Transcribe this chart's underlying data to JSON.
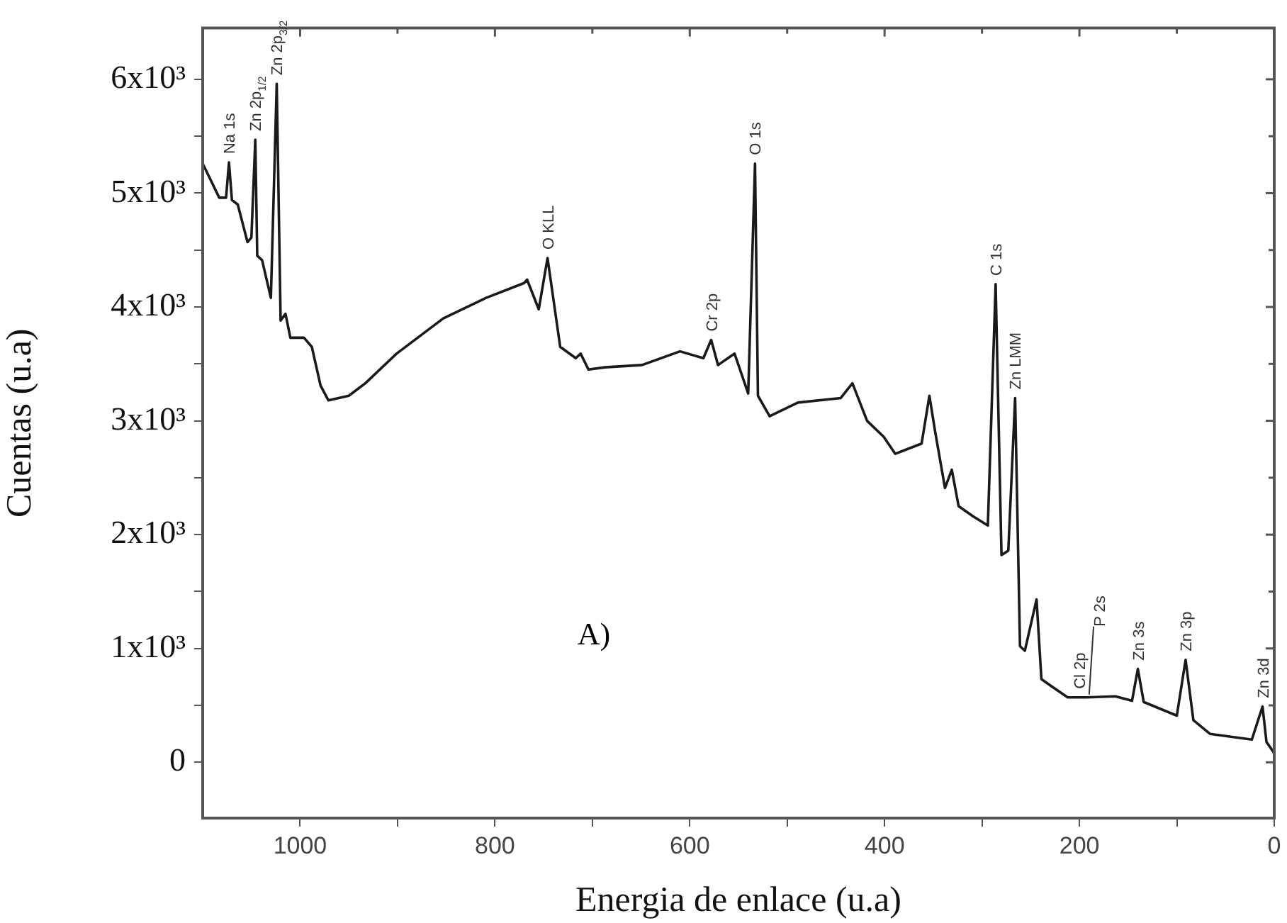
{
  "chart_data": {
    "type": "line",
    "xlabel": "Energia de enlace (u.a)",
    "ylabel": "Cuentas (u.a)",
    "xlim": [
      1100,
      0
    ],
    "ylim": [
      -490,
      6450
    ],
    "xticks": [
      1000,
      {
        "value": 900,
        "label": null
      },
      800,
      {
        "value": 700,
        "label": null
      },
      600,
      {
        "value": 500,
        "label": null
      },
      400,
      {
        "value": 300,
        "label": null
      },
      200,
      {
        "value": 100,
        "label": null
      },
      0
    ],
    "yticks": [
      0,
      {
        "value": 500,
        "label": null
      },
      {
        "value": 1000,
        "label": "1x10³"
      },
      {
        "value": 1500,
        "label": null
      },
      {
        "value": 2000,
        "label": "2x10³"
      },
      {
        "value": 2500,
        "label": null
      },
      {
        "value": 3000,
        "label": "3x10³"
      },
      {
        "value": 3500,
        "label": null
      },
      {
        "value": 4000,
        "label": "4x10³"
      },
      {
        "value": 4500,
        "label": null
      },
      {
        "value": 5000,
        "label": "5x10³"
      },
      {
        "value": 5500,
        "label": null
      },
      {
        "value": 6000,
        "label": "6x10³"
      }
    ],
    "grid": false,
    "legend": false,
    "marker": "none",
    "line_style": "solid",
    "series": [
      {
        "color": "#1a1a1a",
        "x": [
          1100,
          1083,
          1076,
          1073,
          1070,
          1064,
          1054,
          1050,
          1046,
          1044,
          1039,
          1030,
          1024,
          1020,
          1015,
          1010,
          996,
          988,
          979,
          971,
          950,
          933,
          901,
          853,
          809,
          770,
          767,
          755,
          746,
          733,
          717,
          712,
          704,
          687,
          649,
          610,
          586,
          578,
          571,
          554,
          540,
          533,
          530,
          518,
          489,
          445,
          433,
          418,
          401,
          389,
          362,
          354,
          348,
          338,
          331,
          324,
          309,
          294,
          286,
          280,
          273,
          266,
          261,
          256,
          244,
          239,
          229,
          212,
          193,
          163,
          146,
          140,
          134,
          100,
          91,
          83,
          66,
          23,
          12,
          8,
          0
        ],
        "values": [
          5260,
          4960,
          4960,
          5270,
          4940,
          4900,
          4570,
          4610,
          5470,
          4450,
          4410,
          4080,
          5960,
          3880,
          3940,
          3730,
          3730,
          3650,
          3310,
          3180,
          3220,
          3330,
          3590,
          3900,
          4080,
          4210,
          4240,
          3980,
          4430,
          3650,
          3550,
          3590,
          3450,
          3470,
          3490,
          3610,
          3550,
          3710,
          3490,
          3590,
          3240,
          5260,
          3220,
          3040,
          3160,
          3200,
          3330,
          3000,
          2860,
          2710,
          2800,
          3220,
          2900,
          2410,
          2570,
          2250,
          2160,
          2080,
          4200,
          1820,
          1860,
          3200,
          1020,
          980,
          1430,
          730,
          670,
          570,
          570,
          580,
          540,
          820,
          530,
          410,
          900,
          370,
          250,
          200,
          490,
          180,
          80
        ]
      }
    ],
    "annotations": [
      {
        "text": "Na 1s",
        "x": 1073,
        "y": 5270
      },
      {
        "text": "Zn 2p$_{1/2}$",
        "x": 1046,
        "y": 5470
      },
      {
        "text": "Zn 2p$_{3/2}$",
        "x": 1024,
        "y": 5960
      },
      {
        "text": "O KLL",
        "x": 746,
        "y": 4430
      },
      {
        "text": "Cr 2p",
        "x": 578,
        "y": 3710
      },
      {
        "text": "O 1s",
        "x": 533,
        "y": 5260
      },
      {
        "text": "C 1s",
        "x": 286,
        "y": 4200
      },
      {
        "text": "Zn LMM",
        "x": 266,
        "y": 3200
      },
      {
        "text": "Cl 2p",
        "x": 200,
        "y": 570
      },
      {
        "text": "P 2s",
        "x": 190,
        "y": 570
      },
      {
        "text": "Zn 3s",
        "x": 140,
        "y": 820
      },
      {
        "text": "Zn 3p",
        "x": 91,
        "y": 900
      },
      {
        "text": "Zn 3d",
        "x": 12,
        "y": 490
      },
      "A)"
    ]
  }
}
